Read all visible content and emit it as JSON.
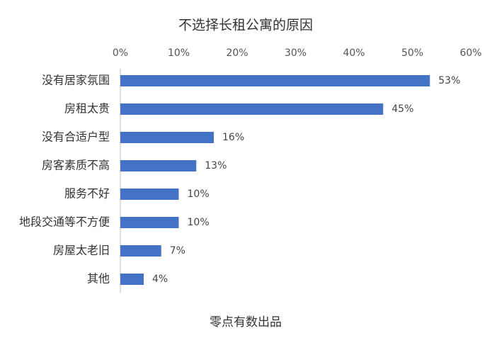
{
  "chart_data": {
    "type": "bar",
    "orientation": "horizontal",
    "title": "不选择长租公寓的原因",
    "categories": [
      "没有居家氛围",
      "房租太贵",
      "没有合适户型",
      "房客素质不高",
      "服务不好",
      "地段交通等不方便",
      "房屋太老旧",
      "其他"
    ],
    "values": [
      53,
      45,
      16,
      13,
      10,
      10,
      7,
      4
    ],
    "value_labels": [
      "53%",
      "45%",
      "16%",
      "13%",
      "10%",
      "10%",
      "7%",
      "4%"
    ],
    "color": "#4472c4",
    "xlim": [
      0,
      60
    ],
    "xticks": [
      {
        "value": 0,
        "label": "0%"
      },
      {
        "value": 10,
        "label": "10%"
      },
      {
        "value": 20,
        "label": "20%"
      },
      {
        "value": 30,
        "label": "30%"
      },
      {
        "value": 40,
        "label": "40%"
      },
      {
        "value": 50,
        "label": "50%"
      },
      {
        "value": 60,
        "label": "60%"
      }
    ],
    "grid": false,
    "source": "零点有数出品"
  }
}
